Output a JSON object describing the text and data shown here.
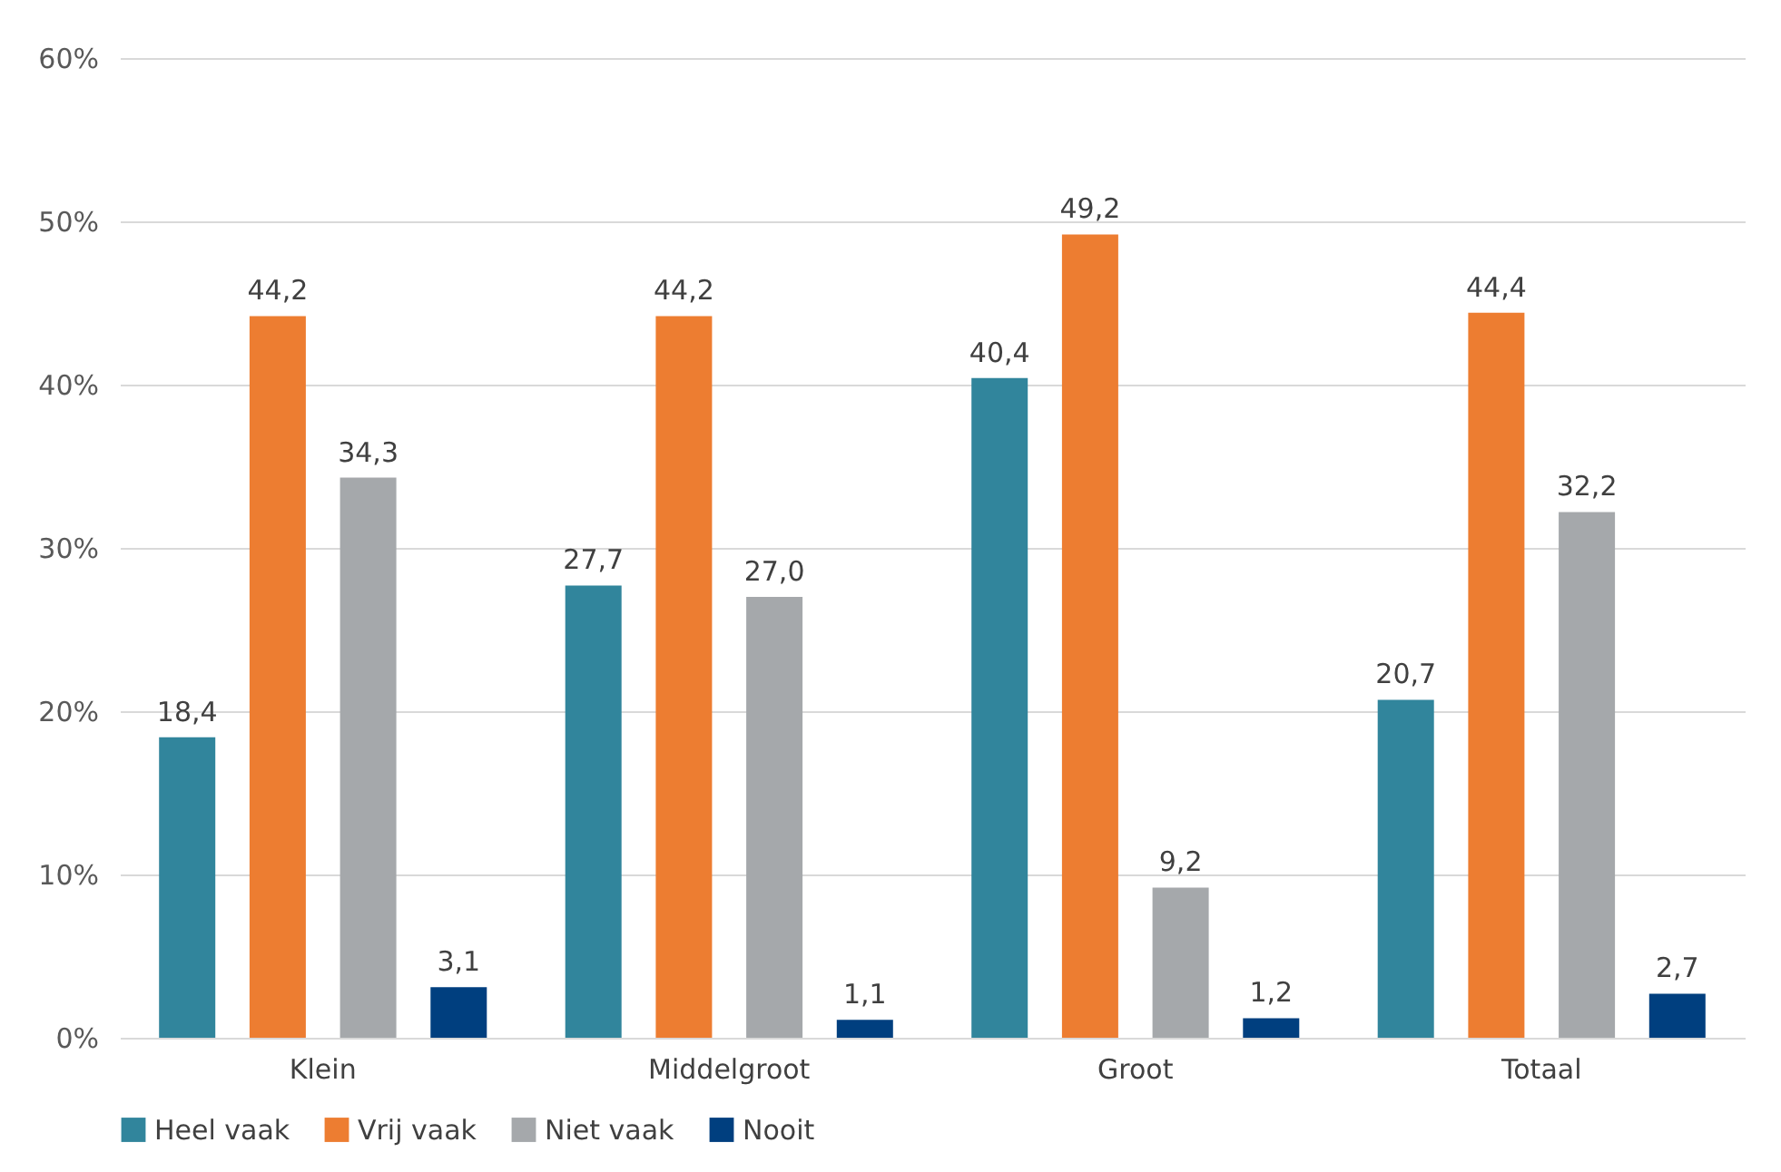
{
  "chart_data": {
    "type": "bar",
    "categories": [
      "Klein",
      "Middelgroot",
      "Groot",
      "Totaal"
    ],
    "series": [
      {
        "name": "Heel vaak",
        "color": "#31859c",
        "values": [
          18.4,
          27.7,
          40.4,
          20.7
        ],
        "value_labels": [
          "18,4",
          "27,7",
          "40,4",
          "20,7"
        ]
      },
      {
        "name": "Vrij vaak",
        "color": "#ed7d31",
        "values": [
          44.2,
          44.2,
          49.2,
          44.4
        ],
        "value_labels": [
          "44,2",
          "44,2",
          "49,2",
          "44,4"
        ]
      },
      {
        "name": "Niet vaak",
        "color": "#a5a8ab",
        "values": [
          34.3,
          27.0,
          9.2,
          32.2
        ],
        "value_labels": [
          "34,3",
          "27,0",
          "9,2",
          "32,2"
        ]
      },
      {
        "name": "Nooit",
        "color": "#003f7f",
        "values": [
          3.1,
          1.1,
          1.2,
          2.7
        ],
        "value_labels": [
          "3,1",
          "1,1",
          "1,2",
          "2,7"
        ]
      }
    ],
    "ylim": [
      0,
      60
    ],
    "yticks": [
      {
        "value": 0,
        "label": "0%"
      },
      {
        "value": 10,
        "label": "10%"
      },
      {
        "value": 20,
        "label": "20%"
      },
      {
        "value": 30,
        "label": "30%"
      },
      {
        "value": 40,
        "label": "40%"
      },
      {
        "value": 50,
        "label": "50%"
      },
      {
        "value": 60,
        "label": "60%"
      }
    ],
    "grid": "y",
    "legend": "bottom"
  }
}
